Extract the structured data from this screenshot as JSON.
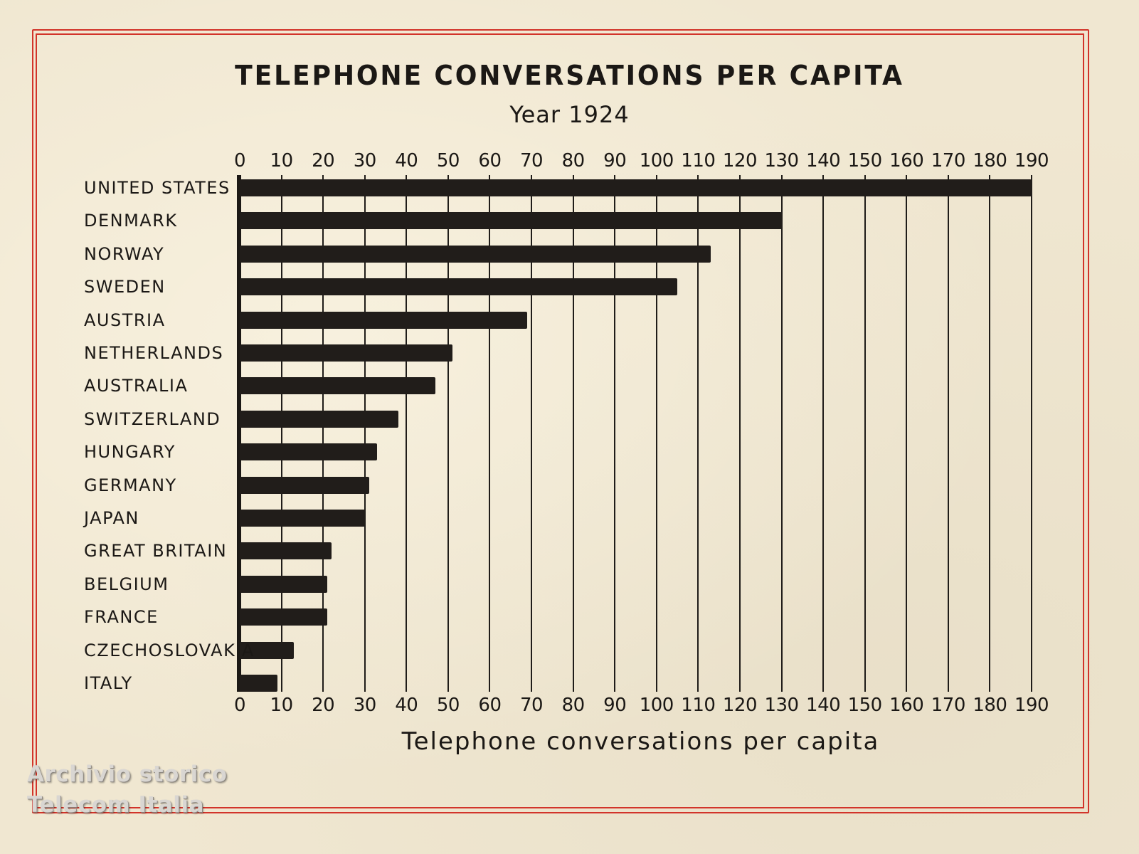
{
  "chart_data": {
    "type": "bar",
    "orientation": "horizontal",
    "title": "TELEPHONE CONVERSATIONS PER CAPITA",
    "subtitle": "Year 1924",
    "xlabel": "Telephone conversations per capita",
    "ylabel": "",
    "xlim": [
      0,
      190
    ],
    "x_ticks": [
      0,
      10,
      20,
      30,
      40,
      50,
      60,
      70,
      80,
      90,
      100,
      110,
      120,
      130,
      140,
      150,
      160,
      170,
      180,
      190
    ],
    "grid": true,
    "legend": null,
    "categories": [
      "UNITED STATES",
      "DENMARK",
      "NORWAY",
      "SWEDEN",
      "AUSTRIA",
      "NETHERLANDS",
      "AUSTRALIA",
      "SWITZERLAND",
      "HUNGARY",
      "GERMANY",
      "JAPAN",
      "GREAT BRITAIN",
      "BELGIUM",
      "FRANCE",
      "CZECHOSLOVAKIA",
      "ITALY"
    ],
    "values": [
      190,
      130,
      113,
      105,
      69,
      51,
      47,
      38,
      33,
      31,
      30,
      22,
      21,
      21,
      13,
      9
    ]
  },
  "colors": {
    "paper": "#f0e7d1",
    "ink": "#1b1815",
    "frame": "#d2342a",
    "watermark": "#d9d6d2"
  },
  "watermark": {
    "line1": "Archivio storico",
    "line2": "Telecom Italia"
  }
}
